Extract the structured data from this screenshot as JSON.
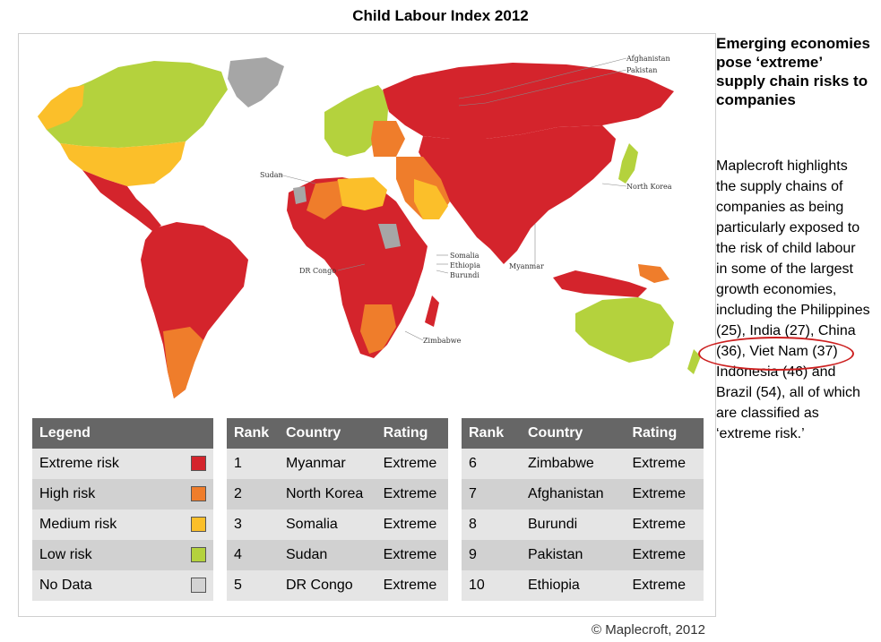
{
  "title": "Child Labour Index 2012",
  "side": {
    "heading": "Emerging economies pose ‘extreme’ supply chain risks to companies",
    "body": "Maplecroft highlights the supply chains of companies as being particularly exposed to the risk of child labour in some of the largest growth economies, including the Philippines (25), India (27), China (36), Viet Nam (37) Indonesia (46) and Brazil (54), all of which are classified as ‘extreme risk.’"
  },
  "copyright": "© Maplecroft, 2012",
  "colors": {
    "extreme": "#d4242c",
    "high": "#ef7d2b",
    "medium": "#fbbf2a",
    "low": "#b4d23d",
    "nodata": "#c8c8c8"
  },
  "map_labels": {
    "afghanistan": "Afghanistan",
    "pakistan": "Pakistan",
    "sudan": "Sudan",
    "north_korea": "North Korea",
    "somalia": "Somalia",
    "ethiopia": "Ethiopia",
    "burundi": "Burundi",
    "dr_congo": "DR Congo",
    "myanmar": "Myanmar",
    "zimbabwe": "Zimbabwe"
  },
  "legend": {
    "header": "Legend",
    "items": [
      {
        "label": "Extreme risk",
        "color": "#d4242c"
      },
      {
        "label": "High risk",
        "color": "#ef7d2b"
      },
      {
        "label": "Medium risk",
        "color": "#fbbf2a"
      },
      {
        "label": "Low risk",
        "color": "#b4d23d"
      },
      {
        "label": "No Data",
        "color": "#d3d3d3"
      }
    ]
  },
  "rank_table": {
    "headers": {
      "rank": "Rank",
      "country": "Country",
      "rating": "Rating"
    },
    "left": [
      {
        "rank": "1",
        "country": "Myanmar",
        "rating": "Extreme"
      },
      {
        "rank": "2",
        "country": "North Korea",
        "rating": "Extreme"
      },
      {
        "rank": "3",
        "country": "Somalia",
        "rating": "Extreme"
      },
      {
        "rank": "4",
        "country": "Sudan",
        "rating": "Extreme"
      },
      {
        "rank": "5",
        "country": "DR Congo",
        "rating": "Extreme"
      }
    ],
    "right": [
      {
        "rank": "6",
        "country": "Zimbabwe",
        "rating": "Extreme"
      },
      {
        "rank": "7",
        "country": "Afghanistan",
        "rating": "Extreme"
      },
      {
        "rank": "8",
        "country": "Burundi",
        "rating": "Extreme"
      },
      {
        "rank": "9",
        "country": "Pakistan",
        "rating": "Extreme"
      },
      {
        "rank": "10",
        "country": "Ethiopia",
        "rating": "Extreme"
      }
    ]
  }
}
